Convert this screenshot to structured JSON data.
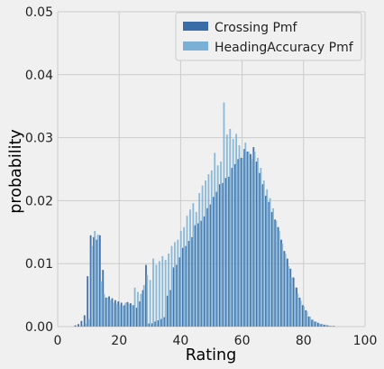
{
  "chart_data": {
    "type": "bar",
    "title": "",
    "xlabel": "Rating",
    "ylabel": "probability",
    "xlim": [
      0,
      100
    ],
    "ylim": [
      0,
      0.05
    ],
    "xticks": [
      0,
      20,
      40,
      60,
      80,
      100
    ],
    "yticks": [
      0.0,
      0.01,
      0.02,
      0.03,
      0.04,
      0.05
    ],
    "xtick_labels": [
      "0",
      "20",
      "40",
      "60",
      "80",
      "100"
    ],
    "ytick_labels": [
      "0.00",
      "0.01",
      "0.02",
      "0.03",
      "0.04",
      "0.05"
    ],
    "grid": true,
    "legend_position": "top-right",
    "x": [
      6,
      7,
      8,
      9,
      10,
      11,
      12,
      13,
      14,
      15,
      16,
      17,
      18,
      19,
      20,
      21,
      22,
      23,
      24,
      25,
      26,
      27,
      28,
      29,
      30,
      31,
      32,
      33,
      34,
      35,
      36,
      37,
      38,
      39,
      40,
      41,
      42,
      43,
      44,
      45,
      46,
      47,
      48,
      49,
      50,
      51,
      52,
      53,
      54,
      55,
      56,
      57,
      58,
      59,
      60,
      61,
      62,
      63,
      64,
      65,
      66,
      67,
      68,
      69,
      70,
      71,
      72,
      73,
      74,
      75,
      76,
      77,
      78,
      79,
      80,
      81,
      82,
      83,
      84,
      85,
      86,
      87,
      88,
      89,
      90
    ],
    "series": [
      {
        "name": "Crossing Pmf",
        "color": "#3a6da8",
        "values": [
          0.0002,
          0.0004,
          0.0009,
          0.0018,
          0.008,
          0.0145,
          0.0142,
          0.0138,
          0.0145,
          0.009,
          0.0046,
          0.0048,
          0.0045,
          0.0042,
          0.004,
          0.0038,
          0.0034,
          0.0039,
          0.0037,
          0.0034,
          0.003,
          0.004,
          0.0058,
          0.0098,
          0.0005,
          0.0005,
          0.0008,
          0.001,
          0.0012,
          0.0015,
          0.0049,
          0.0058,
          0.0094,
          0.0098,
          0.011,
          0.0125,
          0.0128,
          0.0136,
          0.0142,
          0.0161,
          0.0164,
          0.0168,
          0.0175,
          0.0188,
          0.0194,
          0.0206,
          0.0214,
          0.0226,
          0.0228,
          0.0236,
          0.0238,
          0.0252,
          0.0258,
          0.0266,
          0.0268,
          0.0282,
          0.0278,
          0.0274,
          0.0285,
          0.0262,
          0.0244,
          0.0226,
          0.0208,
          0.0198,
          0.0182,
          0.017,
          0.0158,
          0.0138,
          0.012,
          0.0108,
          0.0092,
          0.0078,
          0.0062,
          0.0046,
          0.0034,
          0.0026,
          0.0016,
          0.0011,
          0.0008,
          0.0006,
          0.0004,
          0.0003,
          0.0002,
          0.0001,
          0.0001
        ]
      },
      {
        "name": "HeadingAccuracy Pmf",
        "color": "#7ab0d6",
        "values": [
          0.0,
          0.0,
          0.0002,
          0.0005,
          0.0012,
          0.0128,
          0.0152,
          0.0146,
          0.0072,
          0.0052,
          0.0046,
          0.0042,
          0.0038,
          0.0036,
          0.0034,
          0.0033,
          0.0038,
          0.0036,
          0.0034,
          0.0062,
          0.0055,
          0.0052,
          0.0066,
          0.0082,
          0.0074,
          0.0108,
          0.0098,
          0.0104,
          0.0112,
          0.0106,
          0.0116,
          0.0128,
          0.0134,
          0.0138,
          0.0152,
          0.0158,
          0.0176,
          0.0186,
          0.0196,
          0.0182,
          0.0212,
          0.0224,
          0.0232,
          0.0242,
          0.0248,
          0.0276,
          0.0256,
          0.0262,
          0.0356,
          0.0305,
          0.0314,
          0.0298,
          0.0306,
          0.0288,
          0.0268,
          0.0292,
          0.0278,
          0.0266,
          0.0278,
          0.0268,
          0.0252,
          0.0232,
          0.0218,
          0.0204,
          0.0188,
          0.0168,
          0.0152,
          0.0132,
          0.0116,
          0.0096,
          0.0078,
          0.0062,
          0.0052,
          0.0041,
          0.0032,
          0.0024,
          0.0016,
          0.0011,
          0.0008,
          0.0005,
          0.0004,
          0.0003,
          0.0002,
          0.0001,
          0.0001
        ]
      }
    ]
  }
}
